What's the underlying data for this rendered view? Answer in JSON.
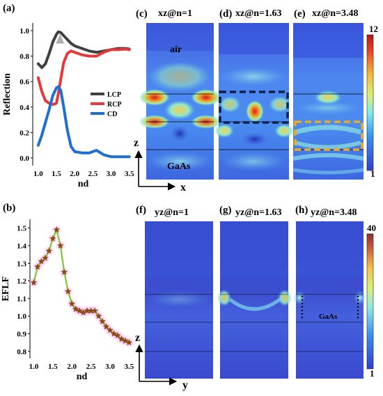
{
  "panel_labels": {
    "a": "(a)",
    "b": "(b)",
    "c": "(c)",
    "d": "(d)",
    "e": "(e)",
    "f": "(f)",
    "g": "(g)",
    "h": "(h)"
  },
  "field_titles": {
    "c": "xz@n=1",
    "d": "xz@n=1.63",
    "e": "xz@n=3.48",
    "f": "yz@n=1",
    "g": "yz@n=1.63",
    "h": "yz@n=3.48"
  },
  "region_labels": {
    "air": "air",
    "gaas_c": "GaAs",
    "gaas_h": "GaAs"
  },
  "axis_arrows": {
    "top_vertical": "z",
    "top_horizontal": "x",
    "bottom_vertical": "z",
    "bottom_horizontal": "y"
  },
  "colorbars": {
    "top": {
      "max_label": "12",
      "min_label": "1"
    },
    "bottom": {
      "max_label": "40",
      "min_label": "1"
    }
  },
  "colors": {
    "lcp": "#404040",
    "rcp": "#e8393a",
    "cd": "#1f6fd0",
    "eflf_line": "#7cc43a",
    "eflf_marker": "#8b4a16",
    "eflf_glow": "#f3b8ee",
    "box_d": "#0c1f4a",
    "box_e": "#f0a81c"
  },
  "chart_data": [
    {
      "type": "line",
      "panel": "a",
      "xlabel": "nd",
      "ylabel": "Reflection",
      "xlim": [
        0.85,
        3.62
      ],
      "ylim": [
        -0.06,
        1.06
      ],
      "xticks": [
        1.0,
        1.5,
        2.0,
        2.5,
        3.0,
        3.5
      ],
      "xtick_labels": [
        "1.0",
        "1.5",
        "2.0",
        "2.5",
        "3.0",
        "3.5"
      ],
      "yticks": [
        0.0,
        0.2,
        0.4,
        0.6,
        0.8,
        1.0
      ],
      "ytick_labels": [
        "0.0",
        "0.2",
        "0.4",
        "0.6",
        "0.8",
        "1.0"
      ],
      "legend_position": "right",
      "series": [
        {
          "name": "LCP",
          "x": [
            1.0,
            1.1,
            1.2,
            1.3,
            1.4,
            1.5,
            1.55,
            1.62,
            1.7,
            1.8,
            1.9,
            2.0,
            2.2,
            2.4,
            2.6,
            2.8,
            3.0,
            3.2,
            3.4,
            3.5
          ],
          "y": [
            0.74,
            0.71,
            0.74,
            0.82,
            0.91,
            0.97,
            0.99,
            0.985,
            0.96,
            0.93,
            0.9,
            0.88,
            0.86,
            0.84,
            0.83,
            0.84,
            0.85,
            0.86,
            0.86,
            0.855
          ]
        },
        {
          "name": "RCP",
          "x": [
            1.0,
            1.1,
            1.2,
            1.3,
            1.4,
            1.5,
            1.55,
            1.62,
            1.7,
            1.8,
            1.9,
            2.0,
            2.2,
            2.4,
            2.6,
            2.8,
            3.0,
            3.2,
            3.4,
            3.5
          ],
          "y": [
            0.63,
            0.52,
            0.45,
            0.43,
            0.42,
            0.43,
            0.5,
            0.62,
            0.75,
            0.82,
            0.84,
            0.83,
            0.81,
            0.8,
            0.8,
            0.83,
            0.85,
            0.85,
            0.855,
            0.85
          ]
        },
        {
          "name": "CD",
          "x": [
            1.0,
            1.1,
            1.2,
            1.3,
            1.4,
            1.5,
            1.55,
            1.62,
            1.7,
            1.8,
            1.9,
            2.0,
            2.2,
            2.4,
            2.6,
            2.8,
            3.0,
            3.2,
            3.4,
            3.5
          ],
          "y": [
            0.1,
            0.18,
            0.28,
            0.38,
            0.49,
            0.55,
            0.56,
            0.53,
            0.4,
            0.22,
            0.09,
            0.05,
            0.04,
            0.04,
            0.06,
            0.025,
            0.01,
            0.01,
            0.01,
            0.01
          ]
        }
      ]
    },
    {
      "type": "line",
      "panel": "b",
      "xlabel": "nd",
      "ylabel": "EFLF",
      "xlim": [
        0.9,
        3.62
      ],
      "ylim": [
        0.76,
        1.55
      ],
      "xticks": [
        1.0,
        1.5,
        2.0,
        2.5,
        3.0,
        3.5
      ],
      "xtick_labels": [
        "1.0",
        "1.5",
        "2.0",
        "2.5",
        "3.0",
        "3.5"
      ],
      "yticks": [
        0.8,
        0.9,
        1.0,
        1.1,
        1.2,
        1.3,
        1.4,
        1.5
      ],
      "ytick_labels": [
        "0.8",
        "0.9",
        "1.0",
        "1.1",
        "1.2",
        "1.3",
        "1.4",
        "1.5"
      ],
      "series": [
        {
          "name": "",
          "x": [
            1.0,
            1.1,
            1.2,
            1.3,
            1.4,
            1.5,
            1.6,
            1.7,
            1.8,
            1.9,
            2.0,
            2.1,
            2.2,
            2.3,
            2.4,
            2.5,
            2.6,
            2.7,
            2.8,
            2.9,
            3.0,
            3.1,
            3.2,
            3.3,
            3.4,
            3.5
          ],
          "y": [
            1.19,
            1.28,
            1.31,
            1.33,
            1.37,
            1.44,
            1.49,
            1.4,
            1.25,
            1.14,
            1.07,
            1.04,
            1.03,
            1.02,
            1.03,
            1.03,
            1.03,
            1.0,
            0.97,
            0.94,
            0.92,
            0.9,
            0.89,
            0.87,
            0.86,
            0.85
          ]
        }
      ]
    }
  ]
}
